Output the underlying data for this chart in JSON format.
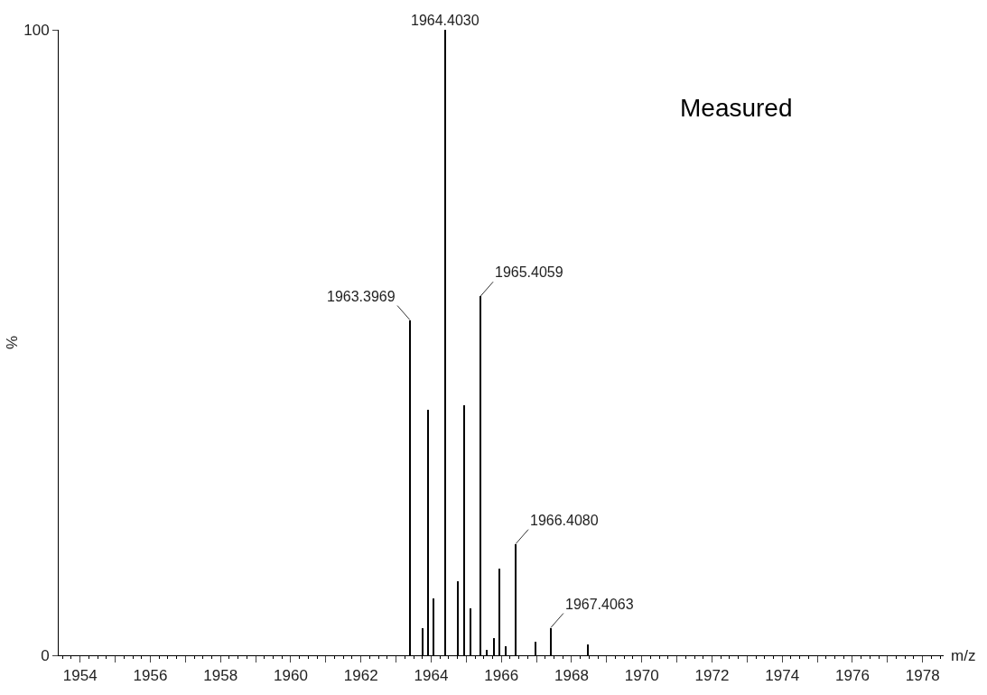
{
  "chart_data": {
    "type": "bar",
    "x": [
      1963.3969,
      1963.77,
      1963.92,
      1964.07,
      1964.403,
      1964.76,
      1964.94,
      1965.12,
      1965.4059,
      1965.6,
      1965.8,
      1965.96,
      1966.13,
      1966.408,
      1966.97,
      1967.4063,
      1968.47
    ],
    "values": [
      53.6,
      4.4,
      39.2,
      9.1,
      100,
      11.9,
      39.9,
      7.5,
      57.4,
      0.8,
      2.8,
      13.8,
      1.4,
      17.8,
      2.1,
      4.4,
      1.7
    ],
    "color": "#000000",
    "xlabel": "m/z",
    "ylabel": "%",
    "xlim": [
      1953.39,
      1978.6
    ],
    "xticks": [
      {
        "value": 1954,
        "label": "1954"
      },
      {
        "value": 1955,
        "label": null
      },
      {
        "value": 1956,
        "label": "1956"
      },
      {
        "value": 1957,
        "label": null
      },
      {
        "value": 1958,
        "label": "1958"
      },
      {
        "value": 1959,
        "label": null
      },
      {
        "value": 1960,
        "label": "1960"
      },
      {
        "value": 1961,
        "label": null
      },
      {
        "value": 1962,
        "label": "1962"
      },
      {
        "value": 1963,
        "label": null
      },
      {
        "value": 1964,
        "label": "1964"
      },
      {
        "value": 1965,
        "label": null
      },
      {
        "value": 1966,
        "label": "1966"
      },
      {
        "value": 1967,
        "label": null
      },
      {
        "value": 1968,
        "label": "1968"
      },
      {
        "value": 1969,
        "label": null
      },
      {
        "value": 1970,
        "label": "1970"
      },
      {
        "value": 1971,
        "label": null
      },
      {
        "value": 1972,
        "label": "1972"
      },
      {
        "value": 1973,
        "label": null
      },
      {
        "value": 1974,
        "label": "1974"
      },
      {
        "value": 1975,
        "label": null
      },
      {
        "value": 1976,
        "label": "1976"
      },
      {
        "value": 1977,
        "label": null
      },
      {
        "value": 1978,
        "label": "1978"
      }
    ],
    "ylim": [
      0,
      100
    ],
    "yticks": [
      0,
      100
    ],
    "annotations": [
      "Measured",
      {
        "text": "1963.3969",
        "x": 1963.3969,
        "y": 53.6
      },
      {
        "text": "1964.4030",
        "x": 1964.403,
        "y": 100
      },
      {
        "text": "1965.4059",
        "x": 1965.4059,
        "y": 57.4
      },
      {
        "text": "1966.4080",
        "x": 1966.408,
        "y": 17.8
      },
      {
        "text": "1967.4063",
        "x": 1967.4063,
        "y": 4.4
      }
    ],
    "tick_labels": "xy"
  }
}
